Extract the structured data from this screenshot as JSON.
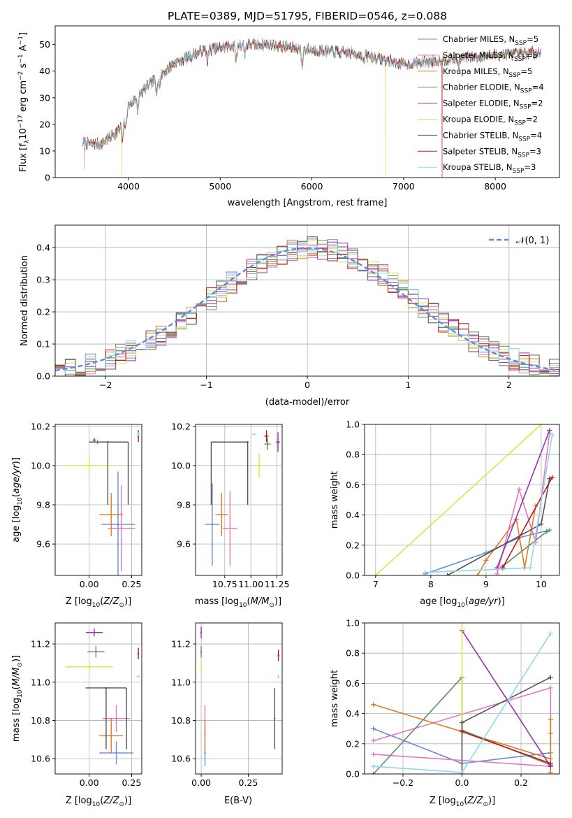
{
  "chart_data": [
    {
      "id": "spectrum",
      "type": "line",
      "title": "PLATE=0389, MJD=51795, FIBERID=0546, z=0.088",
      "xlabel": "wavelength [Angstrom, rest frame]",
      "ylabel": "Flux [f$_\\lambda$10$^{-17}$ erg cm$^{-2}$ s$^{-1}$ A$^{-1}$]",
      "ylabel_parts": {
        "pre": "Flux [f",
        "sub": "λ",
        "mid": "10",
        "sup1": "−17",
        "mid2": " erg cm",
        "sup2": "−2",
        "mid3": " s",
        "sup3": "−1",
        "mid4": " A",
        "sup4": "−1",
        "post": "]"
      },
      "xlim": [
        3200,
        8700
      ],
      "ylim": [
        0,
        57
      ],
      "xticks": [
        4000,
        5000,
        6000,
        7000,
        8000
      ],
      "yticks": [
        0,
        10,
        20,
        30,
        40,
        50
      ],
      "legend_position": "top-right",
      "continuum_knots": {
        "x": [
          3500,
          3700,
          3900,
          4000,
          4200,
          4500,
          4800,
          5200,
          5500,
          6000,
          6500,
          7000,
          7500,
          8000,
          8500
        ],
        "y": [
          13,
          12.5,
          18,
          27,
          34,
          43,
          47.5,
          50,
          50,
          48,
          46.5,
          42.5,
          44.5,
          46,
          47
        ]
      },
      "absorption_lines": [
        {
          "x": 3934,
          "depth": 8
        },
        {
          "x": 3969,
          "depth": 6
        },
        {
          "x": 4102,
          "depth": 5
        },
        {
          "x": 4304,
          "depth": 5
        },
        {
          "x": 4341,
          "depth": 4
        },
        {
          "x": 4861,
          "depth": 4
        },
        {
          "x": 5175,
          "depth": 6
        },
        {
          "x": 5270,
          "depth": 3
        },
        {
          "x": 5893,
          "depth": 7
        },
        {
          "x": 6563,
          "depth": 3
        },
        {
          "x": 7600,
          "depth": 3
        }
      ],
      "spikes": [
        {
          "x": 3520,
          "y": 3,
          "series": 1
        },
        {
          "x": 3925,
          "y": 0,
          "series": 5
        },
        {
          "x": 6800,
          "y": 0,
          "series": 5
        },
        {
          "x": 7420,
          "y": 0,
          "series": 7
        }
      ],
      "series": [
        {
          "name": "Chabrier MILES",
          "nssp": "5",
          "color": "#6a8bd6"
        },
        {
          "name": "Salpeter MILES",
          "nssp": "5",
          "color": "#e377c2"
        },
        {
          "name": "Kroupa MILES",
          "nssp": "5",
          "color": "#e07b25"
        },
        {
          "name": "Chabrier ELODIE",
          "nssp": "4",
          "color": "#5f8f5f"
        },
        {
          "name": "Salpeter ELODIE",
          "nssp": "2",
          "color": "#9b30b0"
        },
        {
          "name": "Kroupa ELODIE",
          "nssp": "2",
          "color": "#d4e84a"
        },
        {
          "name": "Chabrier STELIB",
          "nssp": "4",
          "color": "#555555"
        },
        {
          "name": "Salpeter STELIB",
          "nssp": "3",
          "color": "#c01818"
        },
        {
          "name": "Kroupa STELIB",
          "nssp": "3",
          "color": "#8fd8e8"
        }
      ]
    },
    {
      "id": "residuals",
      "type": "histogram",
      "xlabel": "(data-model)/error",
      "ylabel": "Normed distribution",
      "xlim": [
        -2.5,
        2.5
      ],
      "ylim": [
        0,
        0.47
      ],
      "xticks": [
        -2,
        -1,
        0,
        1,
        2
      ],
      "yticks": [
        0.0,
        0.1,
        0.2,
        0.3,
        0.4
      ],
      "grid": true,
      "legend_position": "top-right",
      "reference_curve": {
        "name": "𝒩(0, 1)",
        "color": "#5b8ed6",
        "style": "dashed"
      },
      "bins": {
        "start": -2.5,
        "width": 0.1
      }
    },
    {
      "id": "age_vs_Z",
      "type": "errorbar",
      "xlabel": "Z [log$_{10}$(Z/Z$_\\odot$)]",
      "ylabel": "age  [log$_{10}$(age/yr)]",
      "xlim": [
        -0.2,
        0.31
      ],
      "ylim": [
        9.44,
        10.21
      ],
      "xticks": [
        0.0,
        0.25
      ],
      "yticks": [
        9.6,
        9.8,
        10.0,
        10.2
      ],
      "grid": true,
      "points": [
        {
          "series": 0,
          "x": 0.17,
          "y": 9.7,
          "xerr": 0.1,
          "yerr": 0.27
        },
        {
          "series": 1,
          "x": 0.19,
          "y": 9.68,
          "xerr": 0.08,
          "yerr": 0.22
        },
        {
          "series": 2,
          "x": 0.13,
          "y": 9.75,
          "xerr": 0.07,
          "yerr": 0.11
        },
        {
          "series": 3,
          "x": 0.05,
          "y": 10.12,
          "xerr": 0.05,
          "yerr": 0.01
        },
        {
          "series": 4,
          "x": 0.03,
          "y": 10.13,
          "xerr": 0.01,
          "yerr": 0.01
        },
        {
          "series": 5,
          "x": 0.0,
          "y": 10.0,
          "xerr": 0.14,
          "yerr": 0.05
        },
        {
          "series": 6,
          "x": 0.11,
          "y": 10.12,
          "xerr": 0.11,
          "yerr": 0.0,
          "asym": {
            "xhi": 0.23,
            "ylo": 9.8
          }
        },
        {
          "series": 7,
          "x": 0.29,
          "y": 10.15,
          "xerr": 0.0,
          "yerr": 0.03
        },
        {
          "series": 8,
          "x": 0.29,
          "y": 10.16,
          "xerr": 0.01,
          "yerr": 0.01
        }
      ]
    },
    {
      "id": "age_vs_mass",
      "type": "errorbar",
      "xlabel": "mass [log$_{10}$(M/M$_\\odot$)]",
      "xlim": [
        10.47,
        11.3
      ],
      "ylim": [
        9.44,
        10.21
      ],
      "xticks": [
        10.75,
        11.0,
        11.25
      ],
      "yticks": [
        9.6,
        9.8,
        10.0,
        10.2
      ],
      "grid": true,
      "points": [
        {
          "series": 0,
          "x": 10.63,
          "y": 9.7,
          "xerr": 0.07,
          "yerr": 0.21
        },
        {
          "series": 1,
          "x": 10.8,
          "y": 9.68,
          "xerr": 0.07,
          "yerr": 0.19
        },
        {
          "series": 2,
          "x": 10.72,
          "y": 9.75,
          "xerr": 0.06,
          "yerr": 0.11
        },
        {
          "series": 3,
          "x": 11.16,
          "y": 10.11,
          "xerr": 0.03,
          "yerr": 0.03
        },
        {
          "series": 4,
          "x": 11.26,
          "y": 10.12,
          "xerr": 0.02,
          "yerr": 0.05
        },
        {
          "series": 5,
          "x": 11.08,
          "y": 10.0,
          "xerr": 0.04,
          "yerr": 0.06
        },
        {
          "series": 6,
          "x": 10.97,
          "y": 10.12,
          "xerr": 0.0,
          "yerr": 0.0,
          "asym": {
            "xlo": 10.62,
            "ylo": 9.8
          }
        },
        {
          "series": 7,
          "x": 11.15,
          "y": 10.15,
          "xerr": 0.02,
          "yerr": 0.03
        },
        {
          "series": 8,
          "x": 11.03,
          "y": 10.16,
          "xerr": 0.02,
          "yerr": 0.0
        }
      ]
    },
    {
      "id": "mw_vs_age",
      "type": "line",
      "xlabel": "age  [log$_{10}$(age/yr)]",
      "ylabel": "mass weight",
      "xlim": [
        6.8,
        10.33
      ],
      "ylim": [
        0,
        1
      ],
      "xticks": [
        7,
        8,
        9,
        10
      ],
      "yticks": [
        0.0,
        0.2,
        0.4,
        0.6,
        0.8,
        1.0
      ],
      "grid": true,
      "series_points": [
        {
          "series": 0,
          "x": [
            7.9,
            9.0,
            9.6,
            10.15
          ],
          "y": [
            0.01,
            0.15,
            0.25,
            0.3
          ]
        },
        {
          "series": 1,
          "x": [
            9.2,
            9.6,
            9.9,
            10.15
          ],
          "y": [
            0.01,
            0.57,
            0.22,
            0.94
          ]
        },
        {
          "series": 2,
          "x": [
            8.85,
            9.0,
            9.55,
            9.7,
            9.9
          ],
          "y": [
            0.0,
            0.1,
            0.37,
            0.05,
            0.46
          ]
        },
        {
          "series": 3,
          "x": [
            9.3,
            10.1
          ],
          "y": [
            0.06,
            0.29
          ]
        },
        {
          "series": 4,
          "x": [
            9.2,
            10.15
          ],
          "y": [
            0.05,
            0.96
          ]
        },
        {
          "series": 5,
          "x": [
            7.0,
            10.0
          ],
          "y": [
            0.0,
            1.0
          ]
        },
        {
          "series": 6,
          "x": [
            8.3,
            10.0,
            10.15
          ],
          "y": [
            0.0,
            0.34,
            0.64
          ]
        },
        {
          "series": 7,
          "x": [
            9.3,
            10.2
          ],
          "y": [
            0.05,
            0.65
          ]
        },
        {
          "series": 8,
          "x": [
            7.9,
            9.8,
            10.2
          ],
          "y": [
            0.02,
            0.05,
            0.93
          ]
        }
      ]
    },
    {
      "id": "mass_vs_Z",
      "type": "errorbar",
      "xlabel": "Z [log$_{10}$(Z/Z$_\\odot$)]",
      "ylabel": "mass [log$_{10}$(M/M$_\\odot$)]",
      "xlim": [
        -0.2,
        0.31
      ],
      "ylim": [
        10.52,
        11.31
      ],
      "xticks": [
        0.0,
        0.25
      ],
      "yticks": [
        10.6,
        10.8,
        11.0,
        11.2
      ],
      "grid": true,
      "points": [
        {
          "series": 0,
          "x": 0.16,
          "y": 10.63,
          "xerr": 0.1,
          "yerr": 0.06
        },
        {
          "series": 1,
          "x": 0.16,
          "y": 10.81,
          "xerr": 0.08,
          "yerr": 0.07
        },
        {
          "series": 2,
          "x": 0.13,
          "y": 10.72,
          "xerr": 0.07,
          "yerr": 0.09
        },
        {
          "series": 3,
          "x": 0.04,
          "y": 11.16,
          "xerr": 0.05,
          "yerr": 0.03
        },
        {
          "series": 4,
          "x": 0.03,
          "y": 11.26,
          "xerr": 0.05,
          "yerr": 0.02
        },
        {
          "series": 5,
          "x": 0.0,
          "y": 11.08,
          "xerr": 0.14,
          "yerr": 0.03
        },
        {
          "series": 6,
          "x": 0.1,
          "y": 10.97,
          "xerr": 0.0,
          "yerr": 0.0,
          "asym": {
            "xlo": -0.02,
            "xhi": 0.22,
            "ylo": 10.65
          }
        },
        {
          "series": 7,
          "x": 0.29,
          "y": 11.15,
          "xerr": 0.0,
          "yerr": 0.03
        },
        {
          "series": 8,
          "x": 0.29,
          "y": 11.03,
          "xerr": 0.01,
          "yerr": 0.0
        }
      ]
    },
    {
      "id": "mass_vs_EBV",
      "type": "errorbar",
      "xlabel": "E(B-V)",
      "xlim": [
        -0.03,
        0.43
      ],
      "ylim": [
        10.52,
        11.31
      ],
      "xticks": [
        0.0,
        0.25
      ],
      "yticks": [
        10.6,
        10.8,
        11.0,
        11.2
      ],
      "grid": true,
      "points": [
        {
          "series": 0,
          "x": 0.02,
          "y": 10.63,
          "xerr": 0.0,
          "yerr": 0.07
        },
        {
          "series": 1,
          "x": 0.02,
          "y": 10.8,
          "xerr": 0.0,
          "yerr": 0.08
        },
        {
          "series": 2,
          "x": 0.02,
          "y": 10.72,
          "xerr": 0.0,
          "yerr": 0.08
        },
        {
          "series": 3,
          "x": 0.0,
          "y": 11.16,
          "xerr": 0.0,
          "yerr": 0.03
        },
        {
          "series": 4,
          "x": 0.0,
          "y": 11.26,
          "xerr": 0.0,
          "yerr": 0.03
        },
        {
          "series": 5,
          "x": 0.0,
          "y": 11.08,
          "xerr": 0.0,
          "yerr": 0.03
        },
        {
          "series": 6,
          "x": 0.39,
          "y": 10.81,
          "xerr": 0.0,
          "yerr": 0.16
        },
        {
          "series": 7,
          "x": 0.41,
          "y": 11.14,
          "xerr": 0.0,
          "yerr": 0.03
        },
        {
          "series": 8,
          "x": 0.41,
          "y": 11.03,
          "xerr": 0.0,
          "yerr": 0.01
        }
      ]
    },
    {
      "id": "mw_vs_Z",
      "type": "line",
      "xlabel": "Z [log$_{10}$(Z/Z$_\\odot$)]",
      "ylabel": "mass weight",
      "xlim": [
        -0.33,
        0.33
      ],
      "ylim": [
        0,
        1
      ],
      "xticks": [
        -0.2,
        0.0,
        0.2
      ],
      "yticks": [
        0.0,
        0.2,
        0.4,
        0.6,
        0.8,
        1.0
      ],
      "grid": true,
      "series_points": [
        {
          "series": 0,
          "x": [
            -0.3,
            0.0,
            0.3
          ],
          "y": [
            0.3,
            0.07,
            0.14
          ]
        },
        {
          "series": 1,
          "x": [
            -0.3,
            0.3,
            0.3,
            -0.3
          ],
          "y": [
            0.22,
            0.57,
            0.05,
            0.13
          ]
        },
        {
          "series": 2,
          "x": [
            -0.3,
            0.3,
            0.3,
            0.3,
            0.3,
            0.3
          ],
          "y": [
            0.46,
            0.1,
            0.36,
            0.27,
            0.05,
            0.01
          ]
        },
        {
          "series": 3,
          "x": [
            -0.3,
            0.0,
            0.0,
            0.3
          ],
          "y": [
            0.0,
            0.64,
            0.29,
            0.06
          ]
        },
        {
          "series": 4,
          "x": [
            0.0,
            0.3
          ],
          "y": [
            0.95,
            0.05
          ]
        },
        {
          "series": 5,
          "x": [
            0.0,
            0.0
          ],
          "y": [
            0.0,
            1.0
          ]
        },
        {
          "series": 6,
          "x": [
            0.0,
            0.0,
            0.3
          ],
          "y": [
            0.0,
            0.34,
            0.64
          ]
        },
        {
          "series": 7,
          "x": [
            0.0,
            0.3
          ],
          "y": [
            0.28,
            0.07
          ]
        },
        {
          "series": 8,
          "x": [
            -0.3,
            0.0,
            0.3
          ],
          "y": [
            0.05,
            0.01,
            0.93
          ]
        }
      ]
    }
  ]
}
